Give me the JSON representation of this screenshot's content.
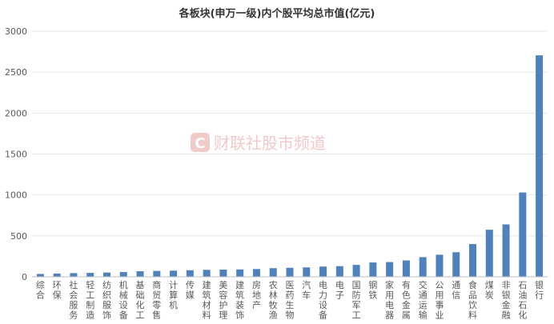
{
  "chart_data": {
    "type": "bar",
    "title": "各板块(申万一级)内个股平均总市值(亿元)",
    "xlabel": "",
    "ylabel": "",
    "ylim": [
      0,
      3000
    ],
    "yticks": [
      0,
      500,
      1000,
      1500,
      2000,
      2500,
      3000
    ],
    "grid": true,
    "legend": "none",
    "bar_color": "#4f81bd",
    "categories": [
      "综合",
      "环保",
      "社会服务",
      "轻工制造",
      "纺织服饰",
      "机械设备",
      "基础化工",
      "商贸零售",
      "计算机",
      "传媒",
      "建筑材料",
      "美容护理",
      "建筑装饰",
      "房地产",
      "农林牧渔",
      "医药生物",
      "汽车",
      "电力设备",
      "电子",
      "国防军工",
      "钢铁",
      "家用电器",
      "有色金属",
      "交通运输",
      "公用事业",
      "通信",
      "食品饮料",
      "煤炭",
      "非银金融",
      "石油石化",
      "银行"
    ],
    "values": [
      35,
      40,
      45,
      48,
      52,
      58,
      68,
      72,
      75,
      80,
      85,
      88,
      90,
      95,
      105,
      110,
      115,
      125,
      130,
      145,
      175,
      180,
      200,
      240,
      270,
      300,
      400,
      575,
      640,
      1030,
      2705
    ]
  },
  "watermark": {
    "logo_letter": "C",
    "text": "财联社股市频道",
    "color": "#e8a7a7"
  }
}
